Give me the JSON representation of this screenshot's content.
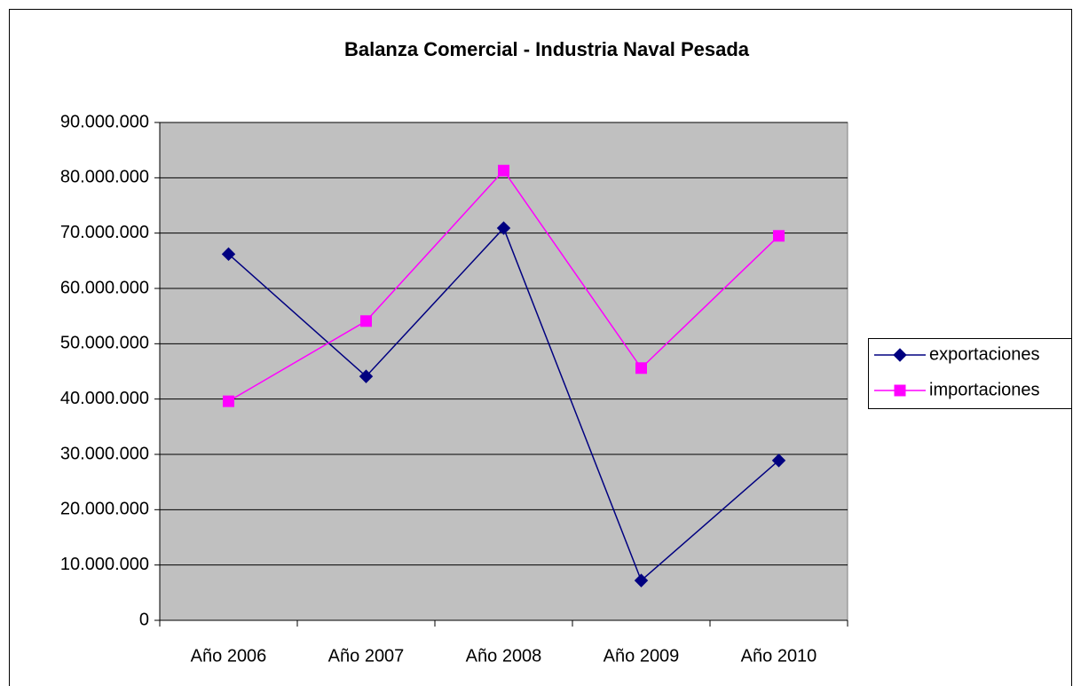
{
  "chart_data": {
    "type": "line",
    "title": "Balanza Comercial - Industria Naval Pesada",
    "categories": [
      "Año 2006",
      "Año 2007",
      "Año 2008",
      "Año 2009",
      "Año 2010"
    ],
    "series": [
      {
        "name": "exportaciones",
        "color": "#000080",
        "marker": "diamond",
        "values": [
          66200000,
          44100000,
          70900000,
          7200000,
          28900000
        ]
      },
      {
        "name": "importaciones",
        "color": "#FF00FF",
        "marker": "square",
        "values": [
          39600000,
          54100000,
          81300000,
          45600000,
          69500000
        ]
      }
    ],
    "ylim": [
      0,
      90000000
    ],
    "yticks": [
      0,
      {
        "value": 10000000,
        "label": "10.000.000"
      },
      {
        "value": 20000000,
        "label": "20.000.000"
      },
      {
        "value": 30000000,
        "label": "30.000.000"
      },
      {
        "value": 40000000,
        "label": "40.000.000"
      },
      {
        "value": 50000000,
        "label": "50.000.000"
      },
      {
        "value": 60000000,
        "label": "60.000.000"
      },
      {
        "value": 70000000,
        "label": "70.000.000"
      },
      {
        "value": 80000000,
        "label": "80.000.000"
      },
      {
        "value": 90000000,
        "label": "90.000.000"
      }
    ],
    "grid": true,
    "legend": "right"
  }
}
